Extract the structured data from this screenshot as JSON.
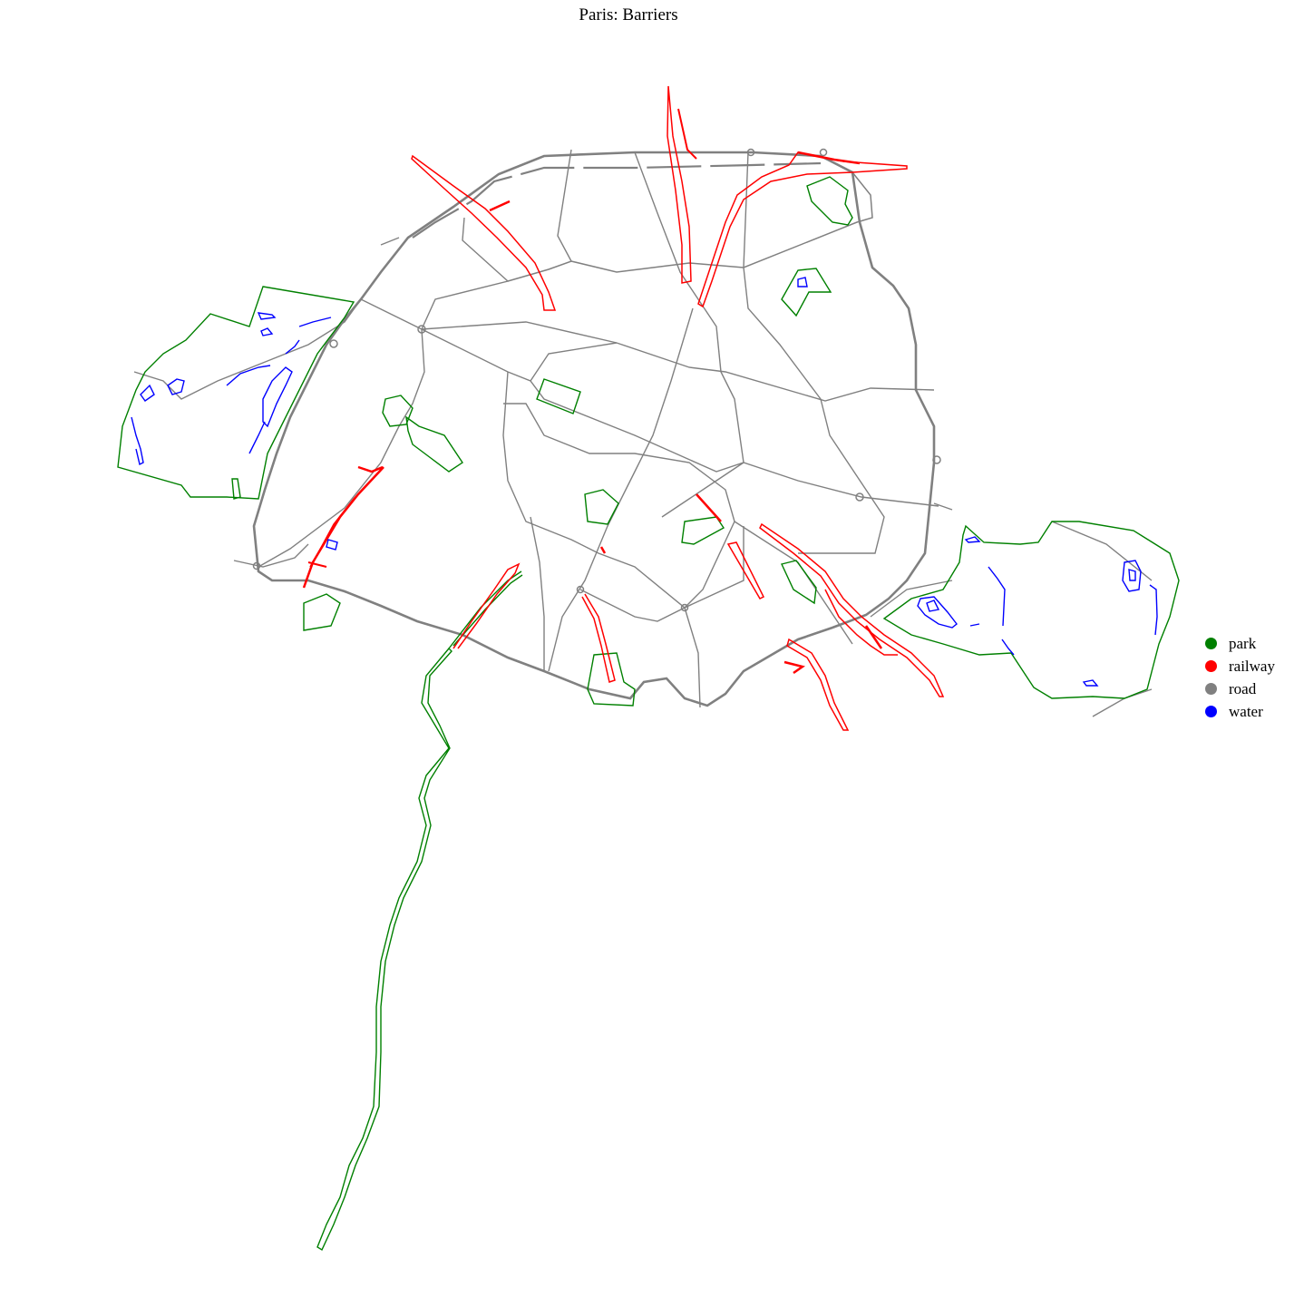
{
  "title": "Paris: Barriers",
  "legend": [
    {
      "label": "park",
      "color": "#008000"
    },
    {
      "label": "railway",
      "color": "#ff0000"
    },
    {
      "label": "road",
      "color": "#808080"
    },
    {
      "label": "water",
      "color": "#0000ff"
    }
  ],
  "colors": {
    "park": "#008000",
    "railway": "#ff0000",
    "road": "#808080",
    "water": "#0000ff",
    "background": "#ffffff"
  }
}
